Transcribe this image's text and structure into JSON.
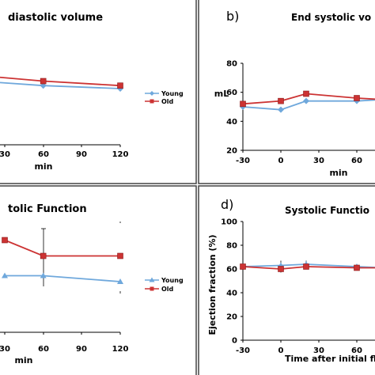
{
  "chart_data": [
    {
      "type": "line",
      "title": "diastolic volume",
      "panel_label": "",
      "xlabel": "min",
      "ylabel": "",
      "x": [
        30,
        60,
        120
      ],
      "x_ticks": [
        "30",
        "60",
        "90",
        "120"
      ],
      "series": [
        {
          "name": "Young",
          "color": "#6fa8dc",
          "marker": "diamond",
          "values": [
            null,
            60,
            58
          ]
        },
        {
          "name": "Old",
          "color": "#cc3333",
          "marker": "square",
          "values": [
            null,
            63,
            60
          ]
        }
      ],
      "legend": "right"
    },
    {
      "type": "line",
      "title": "End systolic vo",
      "panel_label": "b)",
      "xlabel": "min",
      "ylabel": "mL",
      "x": [
        -30,
        0,
        20,
        60,
        80
      ],
      "x_ticks": [
        "-30",
        "0",
        "30",
        "60"
      ],
      "y_ticks": [
        "20",
        "40",
        "60",
        "80"
      ],
      "ylim": [
        20,
        80
      ],
      "series": [
        {
          "name": "Young",
          "color": "#6fa8dc",
          "marker": "diamond",
          "values": [
            50,
            48,
            54,
            54,
            55
          ]
        },
        {
          "name": "Old",
          "color": "#cc3333",
          "marker": "square",
          "values": [
            52,
            54,
            59,
            56,
            55
          ]
        }
      ],
      "legend": ""
    },
    {
      "type": "line",
      "title": "tolic Function",
      "panel_label": "",
      "xlabel": "min",
      "ylabel": "",
      "x": [
        30,
        60,
        120
      ],
      "x_ticks": [
        "30",
        "60",
        "90",
        "120"
      ],
      "series": [
        {
          "name": "Young",
          "color": "#6fa8dc",
          "marker": "triangle",
          "values": [
            62,
            62,
            59
          ]
        },
        {
          "name": "Old",
          "color": "#cc3333",
          "marker": "square",
          "values": [
            80,
            72,
            72
          ]
        }
      ],
      "legend": "right"
    },
    {
      "type": "line",
      "title": "Systolic Functio",
      "panel_label": "d)",
      "xlabel": "Time after initial fluid",
      "ylabel": "Ejection fraction (%)",
      "x": [
        -30,
        0,
        20,
        60,
        80
      ],
      "x_ticks": [
        "-30",
        "0",
        "30",
        "60"
      ],
      "y_ticks": [
        "0",
        "20",
        "40",
        "60",
        "80",
        "100"
      ],
      "ylim": [
        0,
        100
      ],
      "series": [
        {
          "name": "Young",
          "color": "#6fa8dc",
          "marker": "triangle",
          "values": [
            62,
            63,
            64,
            62,
            61
          ]
        },
        {
          "name": "Old",
          "color": "#cc3333",
          "marker": "square",
          "values": [
            62,
            60,
            62,
            61,
            61
          ]
        }
      ],
      "legend": ""
    }
  ]
}
